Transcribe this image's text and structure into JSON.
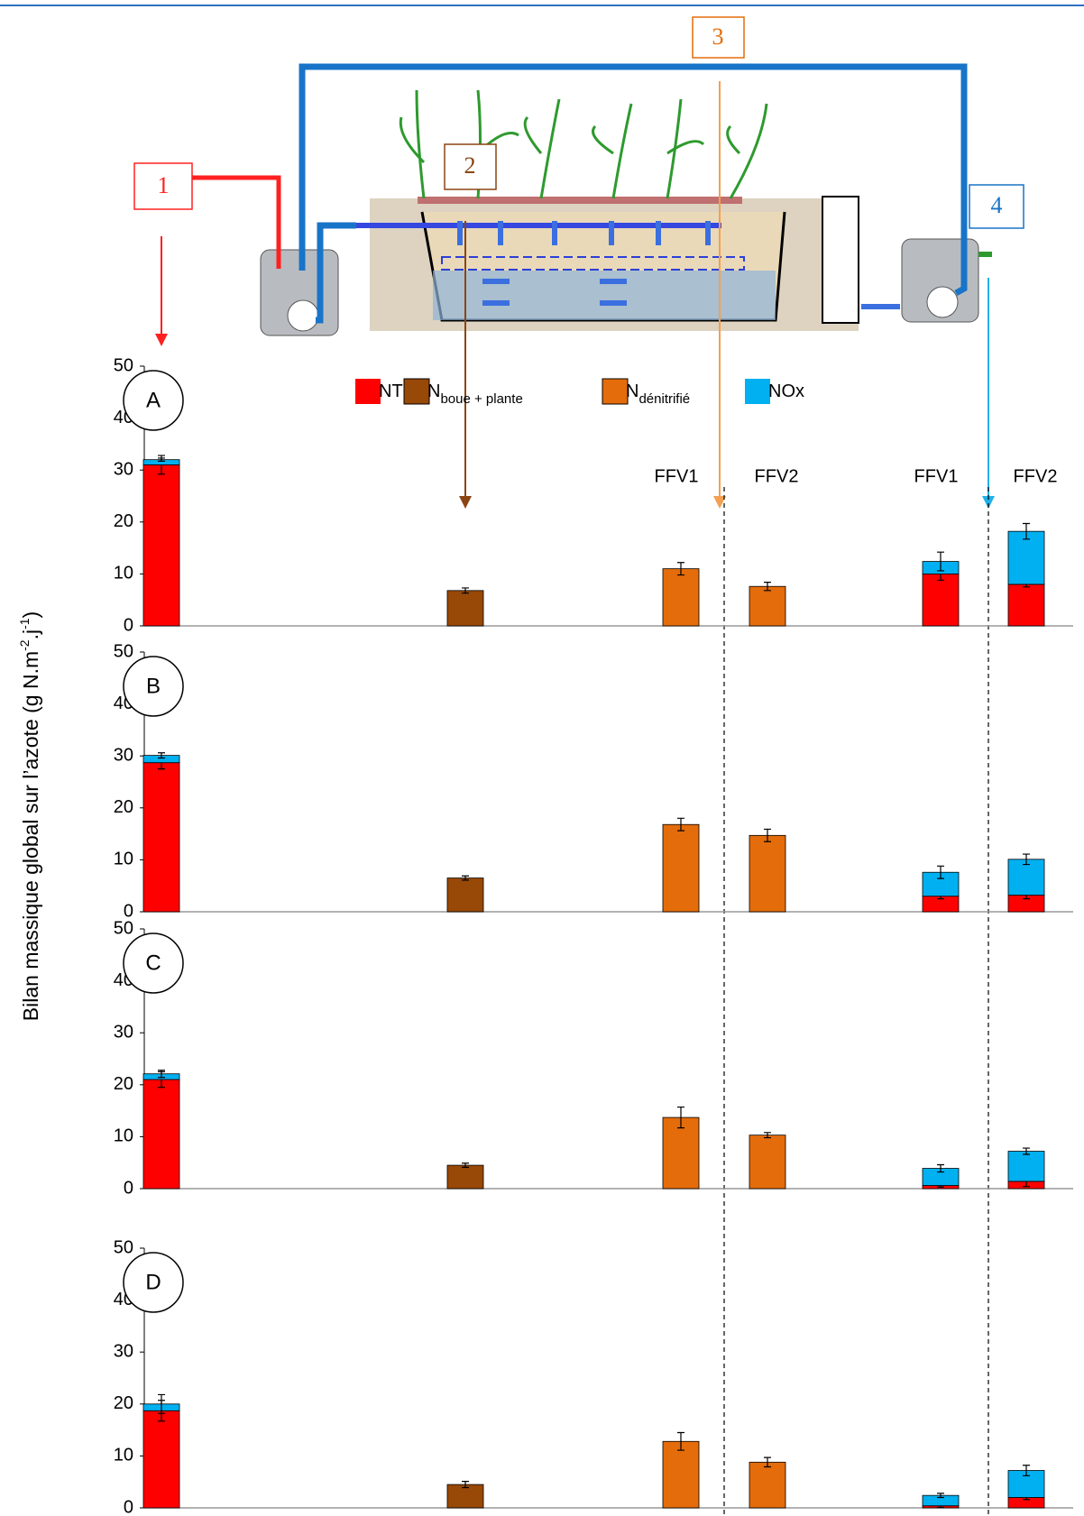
{
  "diagram": {
    "labels": [
      "1",
      "2",
      "3",
      "4"
    ]
  },
  "chart_data": {
    "type": "bar",
    "stacked": true,
    "ylabel": {
      "text": "Bilan massique global sur l’azote (g N.m",
      "sup1": "-2",
      "mid": ".j",
      "sup2": "-1",
      "end": ")"
    },
    "series": [
      {
        "name": "NTK",
        "color": "#ff0000"
      },
      {
        "name": "N",
        "name_sub": "boue + plante",
        "color": "#984807"
      },
      {
        "name": "N",
        "name_sub": "dénitrifié",
        "color": "#e46c0a"
      },
      {
        "name": "NOx",
        "color": "#00b0f0"
      }
    ],
    "panels": [
      {
        "label": "A",
        "categories": [
          null,
          null,
          "FFV1",
          "FFV2",
          "FFV1",
          "FFV2"
        ],
        "ylim": [
          0,
          50
        ],
        "yticks": [
          0,
          10,
          20,
          30,
          40,
          50
        ],
        "series": [
          {
            "values": [
              31,
              null,
              null,
              null,
              10,
              8
            ],
            "errors": [
              1.8,
              null,
              null,
              null,
              1.2,
              0.5
            ]
          },
          {
            "values": [
              null,
              6.8,
              null,
              null,
              null,
              null
            ],
            "errors": [
              null,
              0.5,
              null,
              null,
              null,
              null
            ]
          },
          {
            "values": [
              null,
              null,
              11,
              7.6,
              null,
              null
            ],
            "errors": [
              null,
              null,
              1.2,
              0.8,
              null,
              null
            ]
          },
          {
            "values": [
              1,
              null,
              null,
              null,
              2.4,
              10.2
            ],
            "errors": [
              0.3,
              null,
              null,
              null,
              1.8,
              1.5
            ]
          }
        ]
      },
      {
        "label": "B",
        "categories": [
          null,
          null,
          null,
          null,
          null,
          null
        ],
        "ylim": [
          0,
          50
        ],
        "yticks": [
          0,
          10,
          20,
          30,
          40,
          50
        ],
        "series": [
          {
            "values": [
              28.7,
              null,
              null,
              null,
              3,
              3.2
            ],
            "errors": [
              1.2,
              null,
              null,
              null,
              0.5,
              0.7
            ]
          },
          {
            "values": [
              null,
              6.5,
              null,
              null,
              null,
              null
            ],
            "errors": [
              null,
              0.4,
              null,
              null,
              null,
              null
            ]
          },
          {
            "values": [
              null,
              null,
              16.8,
              14.7,
              null,
              null
            ],
            "errors": [
              null,
              null,
              1.2,
              1.2,
              null,
              null
            ]
          },
          {
            "values": [
              1.4,
              null,
              null,
              null,
              4.6,
              6.9
            ],
            "errors": [
              0.5,
              null,
              null,
              null,
              1.2,
              1
            ]
          }
        ]
      },
      {
        "label": "C",
        "categories": [
          null,
          null,
          null,
          null,
          null,
          null
        ],
        "ylim": [
          0,
          50
        ],
        "yticks": [
          0,
          10,
          20,
          30,
          40,
          50
        ],
        "series": [
          {
            "values": [
              21,
              null,
              null,
              null,
              0.6,
              1.4
            ],
            "errors": [
              1.5,
              null,
              null,
              null,
              0.3,
              1
            ]
          },
          {
            "values": [
              null,
              4.5,
              null,
              null,
              null,
              null
            ],
            "errors": [
              null,
              0.4,
              null,
              null,
              null,
              null
            ]
          },
          {
            "values": [
              null,
              null,
              13.7,
              10.3,
              null,
              null
            ],
            "errors": [
              null,
              null,
              2,
              0.5,
              null,
              null
            ]
          },
          {
            "values": [
              1.1,
              null,
              null,
              null,
              3.3,
              5.8
            ],
            "errors": [
              0.7,
              null,
              null,
              null,
              0.7,
              0.6
            ]
          }
        ]
      },
      {
        "label": "D",
        "categories": [
          null,
          null,
          null,
          null,
          null,
          null
        ],
        "ylim": [
          0,
          50
        ],
        "yticks": [
          0,
          10,
          20,
          30,
          40,
          50
        ],
        "series": [
          {
            "values": [
              18.7,
              null,
              null,
              null,
              0.4,
              2
            ],
            "errors": [
              2,
              null,
              null,
              null,
              0.3,
              0.4
            ]
          },
          {
            "values": [
              null,
              4.5,
              null,
              null,
              null,
              null
            ],
            "errors": [
              null,
              0.6,
              null,
              null,
              null,
              null
            ]
          },
          {
            "values": [
              null,
              null,
              12.8,
              8.8,
              null,
              null
            ],
            "errors": [
              null,
              null,
              1.7,
              0.9,
              null,
              null
            ]
          },
          {
            "values": [
              1.3,
              null,
              null,
              null,
              2,
              5.2
            ],
            "errors": [
              1.8,
              null,
              null,
              null,
              0.4,
              1
            ]
          }
        ]
      }
    ]
  }
}
